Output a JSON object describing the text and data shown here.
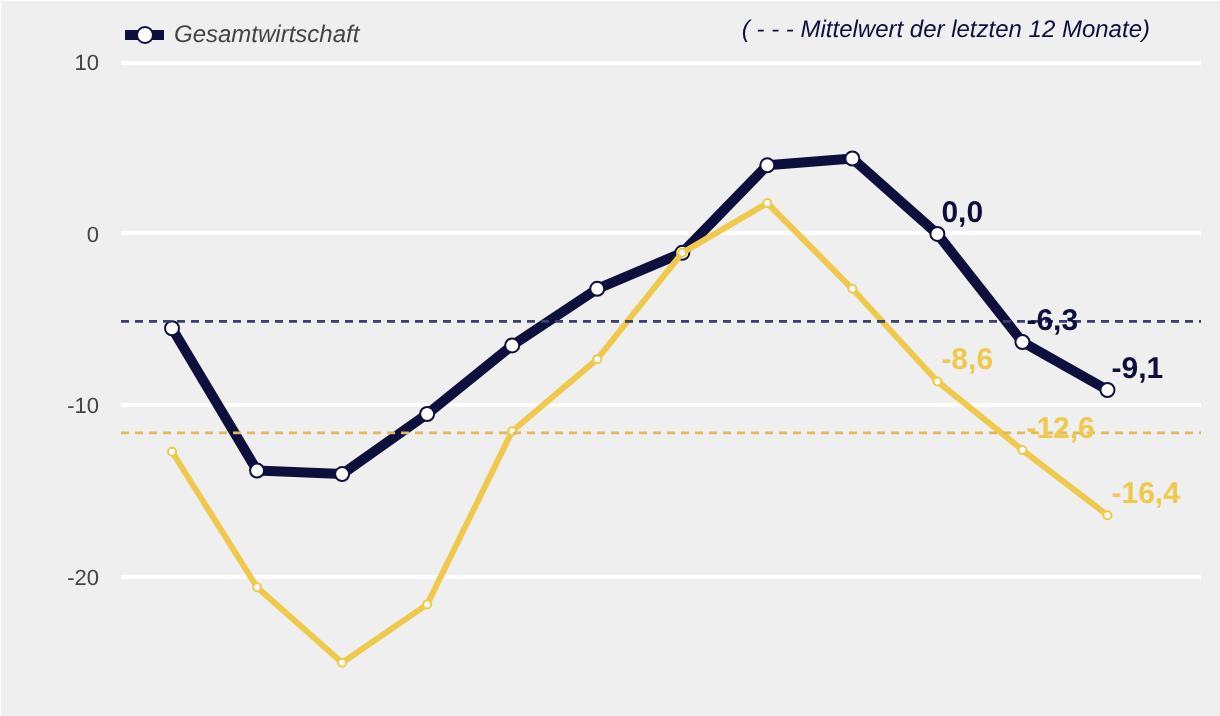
{
  "chart_data": {
    "type": "line",
    "categories": [
      null,
      null,
      null,
      null,
      null,
      null,
      null,
      null,
      null,
      null,
      null,
      null
    ],
    "series": [
      {
        "name": "Gesamtwirtschaft",
        "color": "#0d0f3c",
        "values": [
          -5.5,
          -13.8,
          -14.0,
          -10.5,
          -6.5,
          -3.2,
          -1.1,
          4.0,
          4.4,
          0.0,
          -6.3,
          -9.1
        ],
        "value_labels": [
          null,
          null,
          null,
          null,
          null,
          null,
          null,
          null,
          null,
          "0,0",
          "-6,3",
          "-9,1"
        ]
      },
      {
        "color": "#efc94c",
        "values": [
          -12.7,
          -20.6,
          -25.0,
          -21.6,
          -11.5,
          -7.3,
          -1.1,
          1.8,
          -3.2,
          -8.6,
          -12.6,
          -16.4
        ],
        "value_labels": [
          null,
          null,
          null,
          null,
          null,
          null,
          null,
          null,
          null,
          "-8,6",
          "-12,6",
          "-16,4"
        ]
      }
    ],
    "ref_lines": [
      {
        "axis": "y",
        "value": -5.1,
        "color": "#3a3f6e",
        "line_style": "dashed"
      },
      {
        "axis": "y",
        "value": -11.6,
        "color": "#e0bb55",
        "line_style": "dashed"
      }
    ],
    "annotations": [
      "( - - - Mittelwert der letzten 12 Monate)"
    ],
    "ylim": [
      -27,
      13
    ],
    "yticks": [
      -20,
      -10,
      0,
      10
    ],
    "grid": "y",
    "legend": "top",
    "tick_labels": "y",
    "marker": "circle",
    "line_style": "solid"
  }
}
